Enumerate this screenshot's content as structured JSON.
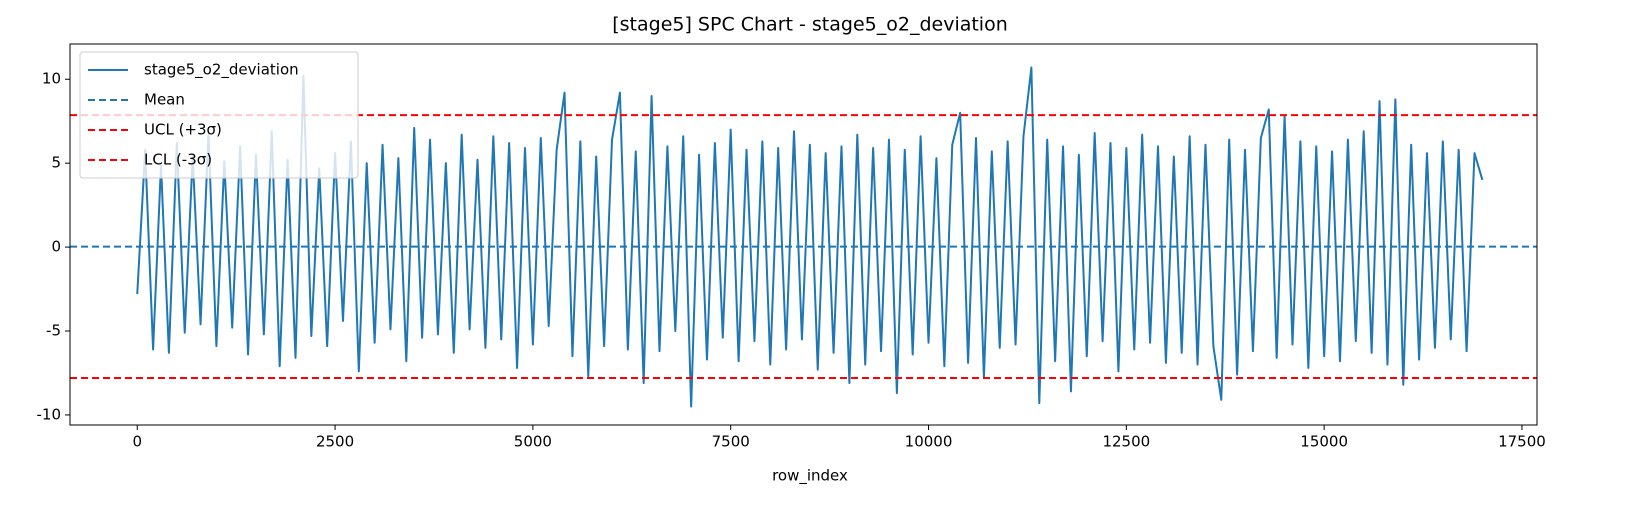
{
  "chart_data": {
    "type": "line",
    "title": "[stage5] SPC Chart - stage5_o2_deviation",
    "xlabel": "row_index",
    "xlim": [
      -850,
      17690
    ],
    "ylim": [
      -10.6,
      12.1
    ],
    "xticks": [
      0,
      2500,
      5000,
      7500,
      10000,
      12500,
      15000,
      17500
    ],
    "yticks": [
      -10,
      -5,
      0,
      5,
      10
    ],
    "legend": "upper left",
    "x": [
      0,
      100,
      200,
      300,
      400,
      500,
      600,
      700,
      800,
      900,
      1000,
      1100,
      1200,
      1300,
      1400,
      1500,
      1600,
      1700,
      1800,
      1900,
      2000,
      2100,
      2200,
      2300,
      2400,
      2500,
      2600,
      2700,
      2800,
      2900,
      3000,
      3100,
      3200,
      3300,
      3400,
      3500,
      3600,
      3700,
      3800,
      3900,
      4000,
      4100,
      4200,
      4300,
      4400,
      4500,
      4600,
      4700,
      4800,
      4900,
      5000,
      5100,
      5200,
      5300,
      5400,
      5500,
      5600,
      5700,
      5800,
      5900,
      6000,
      6100,
      6200,
      6300,
      6400,
      6500,
      6600,
      6700,
      6800,
      6900,
      7000,
      7100,
      7200,
      7300,
      7400,
      7500,
      7600,
      7700,
      7800,
      7900,
      8000,
      8100,
      8200,
      8300,
      8400,
      8500,
      8600,
      8700,
      8800,
      8900,
      9000,
      9100,
      9200,
      9300,
      9400,
      9500,
      9600,
      9700,
      9800,
      9900,
      10000,
      10100,
      10200,
      10300,
      10400,
      10500,
      10600,
      10700,
      10800,
      10900,
      11000,
      11100,
      11200,
      11300,
      11400,
      11500,
      11600,
      11700,
      11800,
      11900,
      12000,
      12100,
      12200,
      12300,
      12400,
      12500,
      12600,
      12700,
      12800,
      12900,
      13000,
      13100,
      13200,
      13300,
      13400,
      13500,
      13600,
      13700,
      13800,
      13900,
      14000,
      14100,
      14200,
      14300,
      14400,
      14500,
      14600,
      14700,
      14800,
      14900,
      15000,
      15100,
      15200,
      15300,
      15400,
      15500,
      15600,
      15700,
      15800,
      15900,
      16000,
      16100,
      16200,
      16300,
      16400,
      16500,
      16600,
      16700,
      16800,
      16900,
      17000
    ],
    "series": [
      {
        "name": "stage5_o2_deviation",
        "color": "#1f77b4",
        "values": [
          -2.8,
          5.8,
          -6.1,
          4.9,
          -6.3,
          6.2,
          -5.1,
          5.4,
          -4.6,
          6.8,
          -5.9,
          5.1,
          -4.8,
          6.0,
          -6.4,
          5.5,
          -5.2,
          6.9,
          -7.1,
          5.2,
          -6.6,
          10.2,
          -5.3,
          4.7,
          -5.9,
          5.6,
          -4.4,
          6.3,
          -7.4,
          5.0,
          -5.7,
          6.1,
          -4.9,
          5.3,
          -6.8,
          7.1,
          -5.4,
          6.4,
          -5.2,
          5.0,
          -6.3,
          6.7,
          -4.9,
          5.2,
          -6.0,
          6.6,
          -5.5,
          6.2,
          -7.2,
          5.9,
          -5.8,
          6.5,
          -4.7,
          5.8,
          9.2,
          -6.5,
          6.3,
          -7.7,
          5.4,
          -5.9,
          6.4,
          9.2,
          -6.1,
          5.7,
          -8.1,
          9.0,
          -6.2,
          6.0,
          -5.0,
          6.6,
          -9.5,
          5.5,
          -6.7,
          6.2,
          -5.4,
          7.0,
          -6.8,
          5.8,
          -5.6,
          6.3,
          -7.0,
          5.9,
          -6.1,
          6.9,
          -5.5,
          6.1,
          -7.3,
          5.6,
          -6.3,
          6.0,
          -8.1,
          6.7,
          -7.0,
          5.9,
          -6.2,
          6.4,
          -8.7,
          5.8,
          -6.4,
          6.6,
          -5.7,
          5.3,
          -7.1,
          6.1,
          8.0,
          -6.9,
          6.5,
          -7.8,
          5.7,
          -6.0,
          6.3,
          -5.8,
          6.6,
          10.7,
          -9.3,
          6.4,
          -6.8,
          6.0,
          -8.6,
          5.5,
          -6.5,
          6.8,
          -5.6,
          6.2,
          -7.4,
          5.9,
          -6.1,
          6.7,
          -5.7,
          6.0,
          -6.9,
          5.4,
          -6.3,
          6.6,
          -7.0,
          6.1,
          -5.9,
          -9.1,
          6.4,
          -7.6,
          5.8,
          -6.2,
          6.5,
          8.2,
          -6.6,
          7.8,
          -5.8,
          6.3,
          -7.2,
          6.0,
          -6.5,
          5.7,
          -6.8,
          6.4,
          -5.6,
          6.9,
          -6.3,
          8.7,
          -7.0,
          8.8,
          -8.2,
          6.1,
          -6.7,
          5.6,
          -6.0,
          6.3,
          -5.5,
          5.8,
          -6.2,
          5.6,
          4.0
        ]
      }
    ],
    "reference_lines": [
      {
        "name": "Mean",
        "value": 0.03,
        "color": "#1f77b4"
      },
      {
        "name": "UCL (+3σ)",
        "value": 7.86,
        "color": "#ff0000"
      },
      {
        "name": "LCL (-3σ)",
        "value": -7.8,
        "color": "#ff0000"
      }
    ]
  }
}
